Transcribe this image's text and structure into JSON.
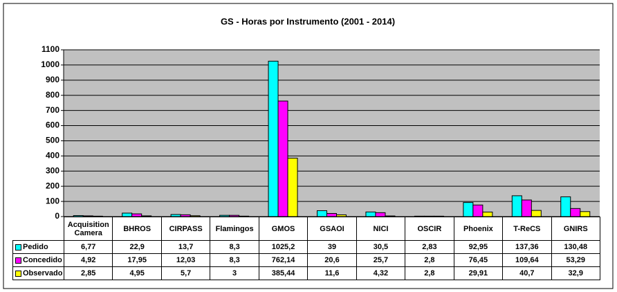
{
  "chart_data": {
    "type": "bar",
    "title": "GS - Horas por Instrumento (2001 - 2014)",
    "categories": [
      "Acquisition Camera",
      "BHROS",
      "CIRPASS",
      "Flamingos",
      "GMOS",
      "GSAOI",
      "NICI",
      "OSCIR",
      "Phoenix",
      "T-ReCS",
      "GNIRS"
    ],
    "series": [
      {
        "name": "Pedido",
        "color": "#00ffff",
        "values": [
          6.77,
          22.9,
          13.7,
          8.3,
          1025.2,
          39,
          30.5,
          2.83,
          92.95,
          137.36,
          130.48
        ],
        "value_labels": [
          "6,77",
          "22,9",
          "13,7",
          "8,3",
          "1025,2",
          "39",
          "30,5",
          "2,83",
          "92,95",
          "137,36",
          "130,48"
        ]
      },
      {
        "name": "Concedido",
        "color": "#ff00ff",
        "values": [
          4.92,
          17.95,
          12.03,
          8.3,
          762.14,
          20.6,
          25.7,
          2.8,
          76.45,
          109.64,
          53.29
        ],
        "value_labels": [
          "4,92",
          "17,95",
          "12,03",
          "8,3",
          "762,14",
          "20,6",
          "25,7",
          "2,8",
          "76,45",
          "109,64",
          "53,29"
        ]
      },
      {
        "name": "Observado",
        "color": "#ffff00",
        "values": [
          2.85,
          4.95,
          5.7,
          3,
          385.44,
          11.6,
          4.32,
          2.8,
          29.91,
          40.7,
          32.9
        ],
        "value_labels": [
          "2,85",
          "4,95",
          "5,7",
          "3",
          "385,44",
          "11,6",
          "4,32",
          "2,8",
          "29,91",
          "40,7",
          "32,9"
        ]
      }
    ],
    "ylim": [
      0,
      1100
    ],
    "yticks": [
      0,
      100,
      200,
      300,
      400,
      500,
      600,
      700,
      800,
      900,
      1000,
      1100
    ],
    "grid": true
  }
}
